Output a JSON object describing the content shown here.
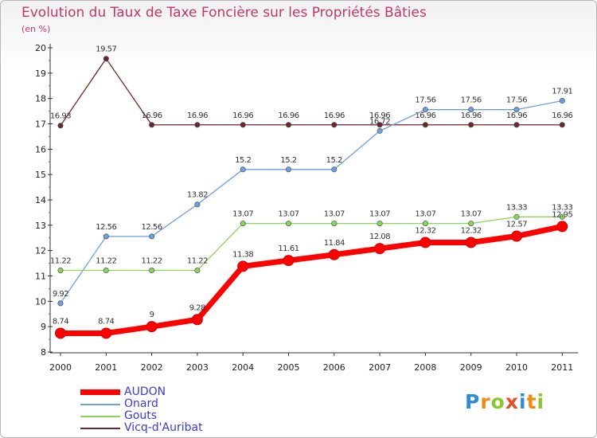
{
  "chart_data": {
    "type": "line",
    "title": "Evolution du Taux de Taxe Foncière sur les Propriétés Bâties",
    "subtitle": "(en %)",
    "categories": [
      "2000",
      "2001",
      "2002",
      "2003",
      "2004",
      "2005",
      "2006",
      "2007",
      "2008",
      "2009",
      "2010",
      "2011"
    ],
    "y_ticks": [
      8,
      9,
      10,
      11,
      12,
      13,
      14,
      15,
      16,
      17,
      18,
      19,
      20
    ],
    "ylim": [
      8,
      20
    ],
    "grid": false,
    "legend_position": "bottom-left",
    "series": [
      {
        "name": "Vicq-d'Auribat",
        "color": "#6b2a2a",
        "values": [
          16.93,
          19.57,
          16.96,
          16.96,
          16.96,
          16.96,
          16.96,
          16.96,
          16.96,
          16.96,
          16.96,
          16.96
        ],
        "labels": [
          "16.93",
          "19.57",
          "16.96",
          "16.96",
          "16.96",
          "16.96",
          "16.96",
          "16.96",
          "16.96",
          "16.96",
          "16.96",
          "16.96"
        ]
      },
      {
        "name": "Onard",
        "color": "#6f9fd8",
        "values": [
          9.92,
          12.56,
          12.56,
          13.82,
          15.2,
          15.2,
          15.2,
          16.72,
          17.56,
          17.56,
          17.56,
          17.91
        ],
        "labels": [
          "9.92",
          "12.56",
          "12.56",
          "13.82",
          "15.2",
          "15.2",
          "15.2",
          "16.72",
          "17.56",
          "17.56",
          "17.56",
          "17.91"
        ]
      },
      {
        "name": "Gouts",
        "color": "#8fd45a",
        "values": [
          11.22,
          11.22,
          11.22,
          11.22,
          13.07,
          13.07,
          13.07,
          13.07,
          13.07,
          13.07,
          13.33,
          13.33
        ],
        "labels": [
          "11.22",
          "11.22",
          "11.22",
          "11.22",
          "13.07",
          "13.07",
          "13.07",
          "13.07",
          "13.07",
          "13.07",
          "13.33",
          "13.33"
        ]
      },
      {
        "name": "AUDON",
        "color": "#ff0000",
        "values": [
          8.74,
          8.74,
          9,
          9.28,
          11.38,
          11.61,
          11.84,
          12.08,
          12.32,
          12.32,
          12.57,
          12.95
        ],
        "labels": [
          "8.74",
          "8.74",
          "9",
          "9.28",
          "11.38",
          "11.61",
          "11.84",
          "12.08",
          "12.32",
          "12.32",
          "12.57",
          "12.95"
        ]
      }
    ]
  },
  "legend": [
    {
      "label": "AUDON",
      "color": "#ff0000"
    },
    {
      "label": "Onard",
      "color": "#6f9fd8"
    },
    {
      "label": "Gouts",
      "color": "#8fd45a"
    },
    {
      "label": "Vicq-d'Auribat",
      "color": "#6b2a2a"
    }
  ],
  "logo": {
    "text": "Proxiti",
    "letters": [
      "P",
      "r",
      "o",
      "x",
      "i",
      "t",
      "i"
    ]
  }
}
